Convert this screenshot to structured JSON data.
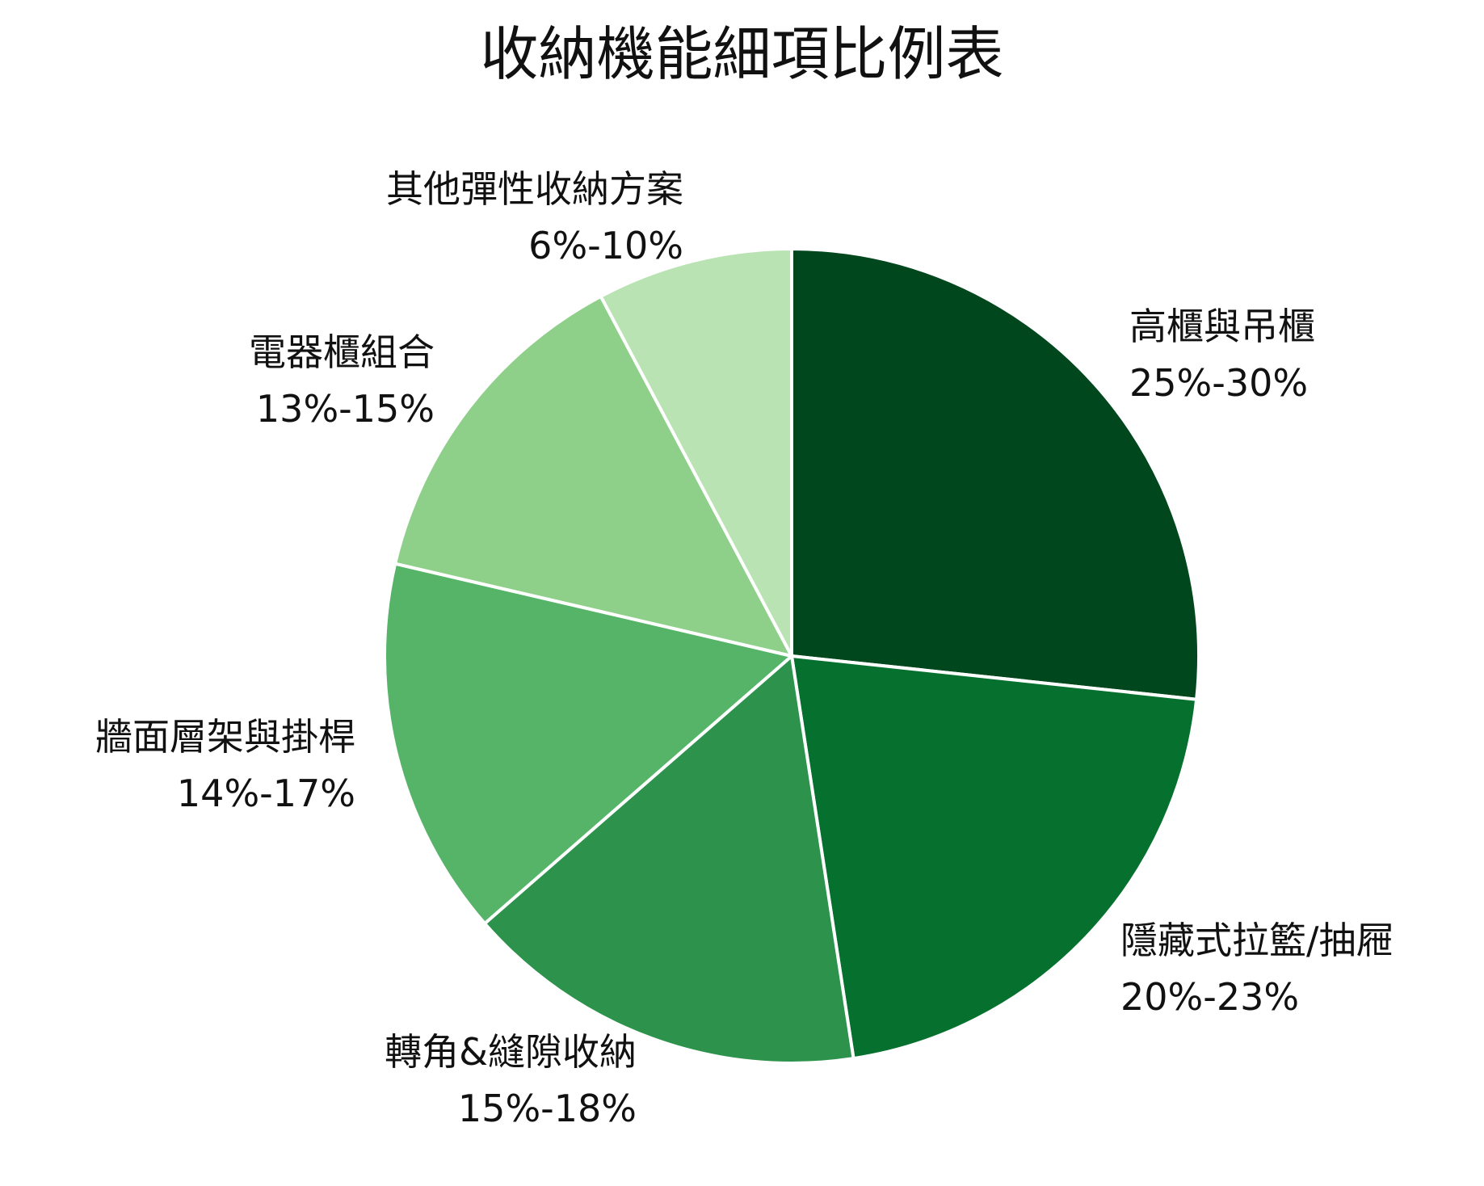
{
  "chart_data": {
    "type": "pie",
    "title": "收納機能細項比例表",
    "slices": [
      {
        "name": "高櫃與吊櫃",
        "value_label": "25%-30%",
        "value": 27.5,
        "color": "#00471d"
      },
      {
        "name": "隱藏式拉籃/抽屜",
        "value_label": "20%-23%",
        "value": 21.5,
        "color": "#06712f"
      },
      {
        "name": "轉角&縫隙收納",
        "value_label": "15%-18%",
        "value": 16.5,
        "color": "#2d924b"
      },
      {
        "name": "牆面層架與掛桿",
        "value_label": "14%-17%",
        "value": 15.5,
        "color": "#56b468"
      },
      {
        "name": "電器櫃組合",
        "value_label": "13%-15%",
        "value": 14,
        "color": "#8ecf89"
      },
      {
        "name": "其他彈性收納方案",
        "value_label": "6%-10%",
        "value": 8,
        "color": "#b9e3b3"
      }
    ],
    "start": "12 o'clock",
    "direction": "clockwise",
    "legend": "none"
  }
}
